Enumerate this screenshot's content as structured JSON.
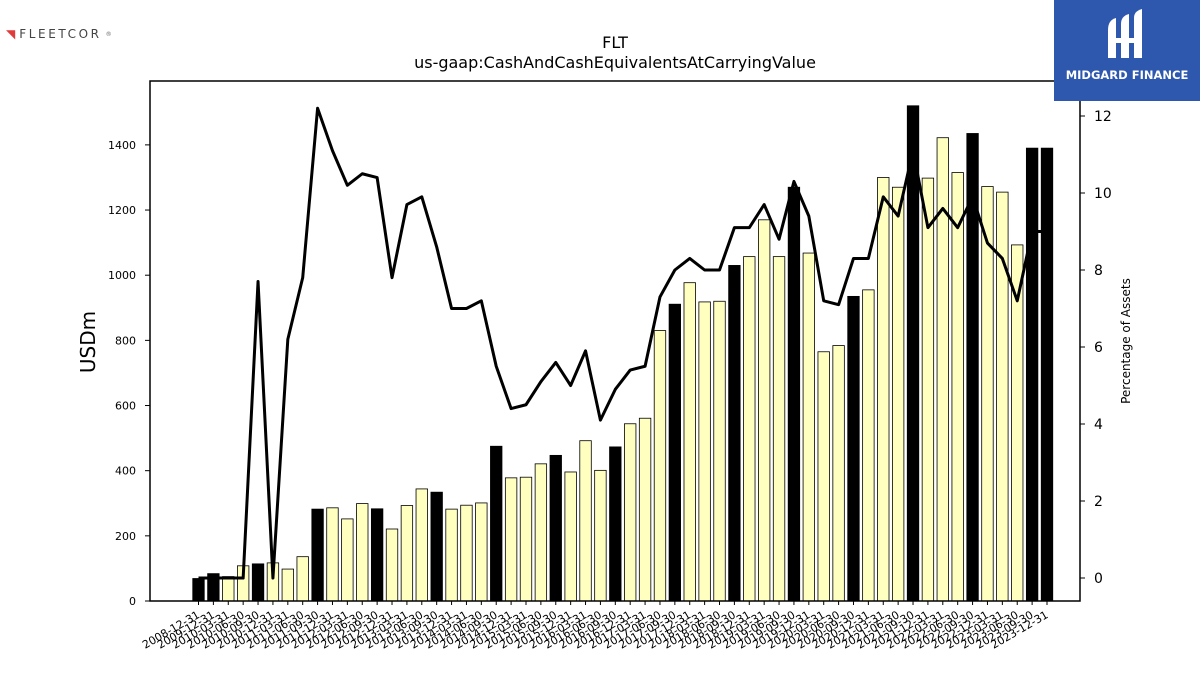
{
  "header": {
    "left_logo_text": "FLEETCOR",
    "left_logo_reg": "®",
    "right_logo_text": "MIDGARD FINANCE"
  },
  "colors": {
    "bar_light": "#ffffc0",
    "bar_dark": "#000000",
    "line": "#000000",
    "brand_blue": "#2e57ae",
    "fleetcor_red": "#e03a3a"
  },
  "chart_data": {
    "type": "bar",
    "title": "FLT",
    "subtitle": "us-gaap:CashAndCashEquivalentsAtCarryingValue",
    "ylabel": "USDm",
    "y2label": "Percentage of Assets",
    "ylim": [
      0,
      1600
    ],
    "y2lim": [
      -0.6,
      13.4
    ],
    "yticks": [
      0,
      200,
      400,
      600,
      800,
      1000,
      1200,
      1400
    ],
    "y2ticks": [
      0,
      2,
      4,
      6,
      8,
      10,
      12
    ],
    "grid": false,
    "categories": [
      "2008-12-31",
      "2009-12-31",
      "2010-03-31",
      "2010-06-30",
      "2010-09-30",
      "2010-12-31",
      "2011-03-31",
      "2011-06-30",
      "2011-09-30",
      "2011-12-31",
      "2012-03-31",
      "2012-06-30",
      "2012-09-30",
      "2012-12-31",
      "2013-03-31",
      "2013-06-30",
      "2013-09-30",
      "2013-12-31",
      "2014-03-31",
      "2014-06-30",
      "2014-09-30",
      "2014-12-31",
      "2015-03-31",
      "2015-06-30",
      "2015-09-30",
      "2015-12-31",
      "2016-03-31",
      "2016-06-30",
      "2016-09-30",
      "2016-12-31",
      "2017-03-31",
      "2017-06-30",
      "2017-09-30",
      "2017-12-31",
      "2018-03-31",
      "2018-06-30",
      "2018-09-30",
      "2018-12-31",
      "2019-03-31",
      "2019-06-30",
      "2019-09-30",
      "2019-12-31",
      "2020-03-31",
      "2020-06-30",
      "2020-09-30",
      "2020-12-31",
      "2021-03-31",
      "2021-06-30",
      "2021-09-30",
      "2021-12-31",
      "2022-03-31",
      "2022-06-30",
      "2022-09-30",
      "2022-12-31",
      "2023-03-31",
      "2023-06-30",
      "2023-09-30",
      "2023-12-31"
    ],
    "series": [
      {
        "name": "",
        "kind": "bar",
        "values": [
          69,
          84,
          75,
          108,
          114,
          117,
          98,
          136,
          282,
          286,
          252,
          299,
          283,
          221,
          293,
          344,
          334,
          282,
          294,
          301,
          475,
          378,
          380,
          421,
          447,
          396,
          492,
          401,
          473,
          544,
          561,
          830,
          911,
          977,
          918,
          920,
          1030,
          1057,
          1170,
          1057,
          1270,
          1068,
          765,
          784,
          935,
          955,
          1300,
          1270,
          1520,
          1298,
          1422,
          1315,
          1435,
          1272,
          1255,
          1093,
          1390,
          1390
        ],
        "highlight": [
          true,
          true,
          false,
          false,
          true,
          false,
          false,
          false,
          true,
          false,
          false,
          false,
          true,
          false,
          false,
          false,
          true,
          false,
          false,
          false,
          true,
          false,
          false,
          false,
          true,
          false,
          false,
          false,
          true,
          false,
          false,
          false,
          true,
          false,
          false,
          false,
          true,
          false,
          false,
          false,
          true,
          false,
          false,
          false,
          true,
          false,
          false,
          false,
          true,
          false,
          false,
          false,
          true,
          false,
          false,
          false,
          true,
          true
        ]
      },
      {
        "name": "",
        "kind": "line",
        "axis": "right",
        "values": [
          0.0,
          0.0,
          0.0,
          0.0,
          7.7,
          0.0,
          6.2,
          7.8,
          12.2,
          11.1,
          10.2,
          10.5,
          10.4,
          7.8,
          9.7,
          9.9,
          8.6,
          7.0,
          7.0,
          7.2,
          5.5,
          4.4,
          4.5,
          5.1,
          5.6,
          5.0,
          5.9,
          4.1,
          4.9,
          5.4,
          5.5,
          7.3,
          8.0,
          8.3,
          8.0,
          8.0,
          9.1,
          9.1,
          9.7,
          8.8,
          10.3,
          9.4,
          7.2,
          7.1,
          8.3,
          8.3,
          9.9,
          9.4,
          11.1,
          9.1,
          9.6,
          9.1,
          9.9,
          8.7,
          8.3,
          7.2,
          9.0,
          9.0
        ]
      }
    ]
  }
}
